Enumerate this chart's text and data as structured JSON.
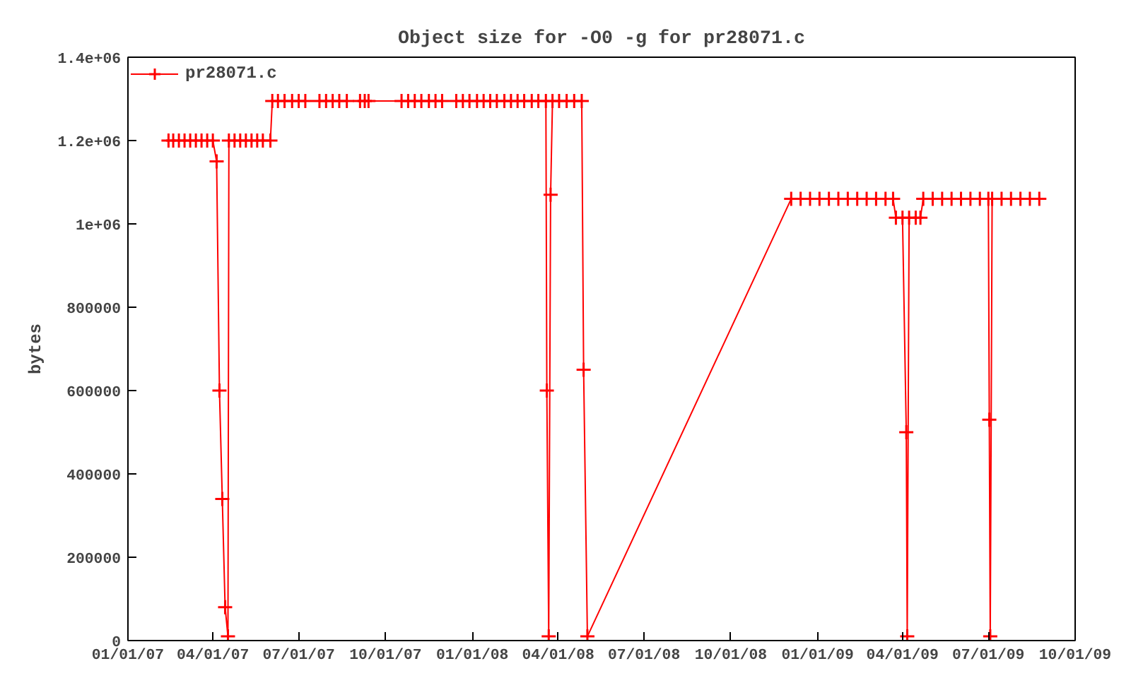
{
  "chart_data": {
    "type": "line",
    "title": "Object size for -O0 -g for pr28071.c",
    "ylabel": "bytes",
    "xlim": [
      "2007-01-01",
      "2009-10-01"
    ],
    "xticks": [
      {
        "value": "2007-01-01",
        "label": "01/01/07"
      },
      {
        "value": "2007-04-01",
        "label": "04/01/07"
      },
      {
        "value": "2007-07-01",
        "label": "07/01/07"
      },
      {
        "value": "2007-10-01",
        "label": "10/01/07"
      },
      {
        "value": "2008-01-01",
        "label": "01/01/08"
      },
      {
        "value": "2008-04-01",
        "label": "04/01/08"
      },
      {
        "value": "2008-07-01",
        "label": "07/01/08"
      },
      {
        "value": "2008-10-01",
        "label": "10/01/08"
      },
      {
        "value": "2009-01-01",
        "label": "01/01/09"
      },
      {
        "value": "2009-04-01",
        "label": "04/01/09"
      },
      {
        "value": "2009-07-01",
        "label": "07/01/09"
      },
      {
        "value": "2009-10-01",
        "label": "10/01/09"
      }
    ],
    "ylim": [
      0,
      1400000
    ],
    "yticks": [
      0,
      200000,
      400000,
      600000,
      800000,
      {
        "value": 1000000,
        "label": "1e+06"
      },
      {
        "value": 1200000,
        "label": "1.2e+06"
      },
      {
        "value": 1400000,
        "label": "1.4e+06"
      }
    ],
    "grid": false,
    "legend": "top left",
    "marker": "cross",
    "line_style": "solid",
    "series": [
      {
        "name": "pr28071.c",
        "color": "#ff0000",
        "x": [
          "2007-02-13",
          "2007-02-18",
          "2007-02-24",
          "2007-03-02",
          "2007-03-08",
          "2007-03-14",
          "2007-03-20",
          "2007-03-26",
          "2007-04-01",
          "2007-04-05",
          "2007-04-08",
          "2007-04-11",
          "2007-04-14",
          "2007-04-17",
          "2007-04-18",
          "2007-04-24",
          "2007-04-30",
          "2007-05-06",
          "2007-05-12",
          "2007-05-18",
          "2007-05-24",
          "2007-06-01",
          "2007-06-03",
          "2007-06-09",
          "2007-06-16",
          "2007-06-24",
          "2007-07-01",
          "2007-07-08",
          "2007-07-23",
          "2007-07-30",
          "2007-08-06",
          "2007-08-13",
          "2007-08-21",
          "2007-09-04",
          "2007-09-09",
          "2007-09-13",
          "2007-10-18",
          "2007-10-25",
          "2007-11-01",
          "2007-11-08",
          "2007-11-16",
          "2007-11-23",
          "2007-11-30",
          "2007-12-15",
          "2007-12-22",
          "2007-12-29",
          "2008-01-06",
          "2008-01-13",
          "2008-01-20",
          "2008-01-27",
          "2008-02-04",
          "2008-02-11",
          "2008-02-18",
          "2008-02-25",
          "2008-03-04",
          "2008-03-11",
          "2008-03-19",
          "2008-03-20",
          "2008-03-22",
          "2008-03-24",
          "2008-03-26",
          "2008-04-02",
          "2008-04-10",
          "2008-04-18",
          "2008-04-26",
          "2008-04-28",
          "2008-05-02",
          "2008-12-04",
          "2008-12-14",
          "2008-12-24",
          "2009-01-03",
          "2009-01-13",
          "2009-01-23",
          "2009-02-02",
          "2009-02-12",
          "2009-02-22",
          "2009-03-04",
          "2009-03-14",
          "2009-03-22",
          "2009-03-25",
          "2009-04-01",
          "2009-04-05",
          "2009-04-06",
          "2009-04-08",
          "2009-04-15",
          "2009-04-20",
          "2009-04-23",
          "2009-05-03",
          "2009-05-13",
          "2009-05-23",
          "2009-06-02",
          "2009-06-12",
          "2009-06-22",
          "2009-07-01",
          "2009-07-02",
          "2009-07-03",
          "2009-07-05",
          "2009-07-15",
          "2009-07-25",
          "2009-08-04",
          "2009-08-14",
          "2009-08-24"
        ],
        "values": [
          1200000,
          1200000,
          1200000,
          1200000,
          1200000,
          1200000,
          1200000,
          1200000,
          1200000,
          1150000,
          600000,
          340000,
          80000,
          10000,
          1200000,
          1200000,
          1200000,
          1200000,
          1200000,
          1200000,
          1200000,
          1200000,
          1295000,
          1295000,
          1295000,
          1295000,
          1295000,
          1295000,
          1295000,
          1295000,
          1295000,
          1295000,
          1295000,
          1295000,
          1295000,
          1295000,
          1295000,
          1295000,
          1295000,
          1295000,
          1295000,
          1295000,
          1295000,
          1295000,
          1295000,
          1295000,
          1295000,
          1295000,
          1295000,
          1295000,
          1295000,
          1295000,
          1295000,
          1295000,
          1295000,
          1295000,
          1295000,
          600000,
          10000,
          1070000,
          1295000,
          1295000,
          1295000,
          1295000,
          1295000,
          650000,
          10000,
          1060000,
          1060000,
          1060000,
          1060000,
          1060000,
          1060000,
          1060000,
          1060000,
          1060000,
          1060000,
          1060000,
          1060000,
          1015000,
          1015000,
          500000,
          10000,
          1015000,
          1015000,
          1015000,
          1060000,
          1060000,
          1060000,
          1060000,
          1060000,
          1060000,
          1060000,
          1060000,
          530000,
          10000,
          1060000,
          1060000,
          1060000,
          1060000,
          1060000,
          1060000
        ]
      }
    ]
  }
}
